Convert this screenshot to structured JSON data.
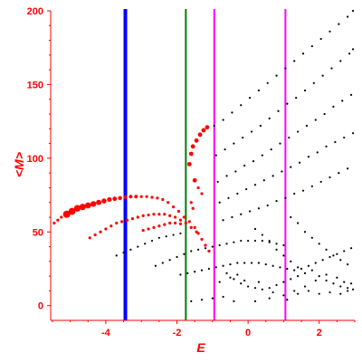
{
  "chart_data": {
    "type": "scatter",
    "xlabel": "E",
    "ylabel": "<M>",
    "xlim": [
      -5.55,
      3.0
    ],
    "ylim": [
      -10,
      200
    ],
    "x_ticks": [
      {
        "value": -4,
        "label": "-4"
      },
      {
        "value": -2,
        "label": "-2"
      },
      {
        "value": 0,
        "label": "0"
      },
      {
        "value": 2,
        "label": "2"
      }
    ],
    "y_ticks": [
      {
        "value": 0,
        "label": "0"
      },
      {
        "value": 50,
        "label": "50"
      },
      {
        "value": 100,
        "label": "100"
      },
      {
        "value": 150,
        "label": "150"
      },
      {
        "value": 200,
        "label": "200"
      }
    ],
    "vertical_lines": [
      {
        "x": -3.45,
        "color": "#0000ff"
      },
      {
        "x": -1.75,
        "color": "#008000"
      },
      {
        "x": -0.95,
        "color": "#ff00ff"
      },
      {
        "x": 1.05,
        "color": "#ff00ff"
      }
    ],
    "colors": {
      "axis": "#ff0000",
      "red_points": "#ff0000",
      "black_points": "#000000"
    },
    "series": [
      {
        "color": "#ff0000",
        "points": [
          [
            -5.45,
            56
          ],
          [
            -5.35,
            58
          ],
          [
            -5.25,
            60
          ],
          [
            -5.1,
            62
          ],
          [
            -4.95,
            64
          ],
          [
            -4.8,
            66
          ],
          [
            -4.65,
            67
          ],
          [
            -4.5,
            68
          ],
          [
            -4.35,
            69
          ],
          [
            -4.2,
            70
          ],
          [
            -4.05,
            71
          ],
          [
            -3.9,
            72
          ],
          [
            -3.75,
            72.5
          ],
          [
            -3.6,
            73
          ],
          [
            -3.45,
            73.5
          ],
          [
            -3.3,
            74
          ],
          [
            -3.15,
            74
          ],
          [
            -3.0,
            74
          ],
          [
            -2.85,
            74
          ],
          [
            -2.7,
            73.5
          ],
          [
            -2.55,
            73
          ],
          [
            -2.4,
            72
          ],
          [
            -2.25,
            70
          ],
          [
            -2.1,
            67
          ],
          [
            -1.95,
            64
          ],
          [
            -1.8,
            60
          ],
          [
            -1.65,
            57
          ],
          [
            -1.5,
            53
          ],
          [
            -1.4,
            49
          ],
          [
            -1.3,
            45
          ],
          [
            -1.2,
            41
          ],
          [
            -1.1,
            37
          ],
          [
            -4.45,
            46
          ],
          [
            -4.3,
            48
          ],
          [
            -4.15,
            50
          ],
          [
            -4.0,
            52
          ],
          [
            -3.85,
            54
          ],
          [
            -3.7,
            56
          ],
          [
            -3.55,
            57
          ],
          [
            -3.4,
            58
          ],
          [
            -3.25,
            59
          ],
          [
            -3.1,
            60
          ],
          [
            -2.95,
            61
          ],
          [
            -2.8,
            61.5
          ],
          [
            -2.65,
            62
          ],
          [
            -2.5,
            62
          ],
          [
            -2.35,
            62
          ],
          [
            -2.2,
            61
          ],
          [
            -2.05,
            60
          ],
          [
            -1.9,
            58
          ],
          [
            -1.75,
            56
          ],
          [
            -1.6,
            53
          ],
          [
            -1.45,
            50
          ],
          [
            -2.95,
            51
          ],
          [
            -2.8,
            52
          ],
          [
            -2.65,
            53
          ],
          [
            -2.5,
            54
          ],
          [
            -2.35,
            55
          ],
          [
            -2.2,
            56
          ],
          [
            -2.05,
            56
          ],
          [
            -1.9,
            55.5
          ],
          [
            -1.65,
            96
          ],
          [
            -1.6,
            103
          ],
          [
            -1.55,
            108
          ],
          [
            -1.45,
            112
          ],
          [
            -1.35,
            116
          ],
          [
            -1.25,
            119
          ],
          [
            -1.15,
            121
          ],
          [
            -1.5,
            85
          ],
          [
            -1.4,
            80
          ],
          [
            -1.3,
            76
          ],
          [
            -1.6,
            70
          ],
          [
            -1.55,
            66
          ]
        ]
      },
      {
        "color": "#000000",
        "points": [
          [
            -0.95,
            122
          ],
          [
            -0.7,
            126
          ],
          [
            -0.45,
            131
          ],
          [
            -0.2,
            136
          ],
          [
            0.05,
            141
          ],
          [
            0.3,
            146
          ],
          [
            0.55,
            151
          ],
          [
            0.8,
            156
          ],
          [
            1.05,
            161
          ],
          [
            1.3,
            166
          ],
          [
            1.55,
            171
          ],
          [
            1.8,
            176
          ],
          [
            2.05,
            181
          ],
          [
            2.3,
            186
          ],
          [
            2.55,
            191
          ],
          [
            2.8,
            196
          ],
          [
            2.95,
            200
          ],
          [
            -0.9,
            102
          ],
          [
            -0.65,
            106
          ],
          [
            -0.4,
            110
          ],
          [
            -0.15,
            114
          ],
          [
            0.1,
            118
          ],
          [
            0.35,
            122
          ],
          [
            0.6,
            127
          ],
          [
            0.85,
            132
          ],
          [
            1.1,
            137
          ],
          [
            1.35,
            141
          ],
          [
            1.6,
            146
          ],
          [
            1.85,
            151
          ],
          [
            2.1,
            156
          ],
          [
            2.35,
            161
          ],
          [
            2.6,
            166
          ],
          [
            2.85,
            171
          ],
          [
            2.95,
            174
          ],
          [
            -0.85,
            84
          ],
          [
            -0.6,
            88
          ],
          [
            -0.35,
            91
          ],
          [
            -0.1,
            95
          ],
          [
            0.15,
            98
          ],
          [
            0.4,
            102
          ],
          [
            0.65,
            106
          ],
          [
            0.9,
            110
          ],
          [
            1.15,
            114
          ],
          [
            1.4,
            118
          ],
          [
            1.65,
            122
          ],
          [
            1.9,
            126
          ],
          [
            2.15,
            130
          ],
          [
            2.4,
            135
          ],
          [
            2.65,
            139
          ],
          [
            2.9,
            143
          ],
          [
            -0.8,
            70
          ],
          [
            -0.55,
            73
          ],
          [
            -0.3,
            76
          ],
          [
            -0.05,
            79
          ],
          [
            0.2,
            82
          ],
          [
            0.45,
            85
          ],
          [
            0.7,
            88
          ],
          [
            0.95,
            91
          ],
          [
            1.2,
            94
          ],
          [
            1.45,
            97
          ],
          [
            1.7,
            101
          ],
          [
            1.95,
            104
          ],
          [
            2.2,
            108
          ],
          [
            2.45,
            111
          ],
          [
            2.7,
            114
          ],
          [
            2.95,
            117
          ],
          [
            -0.7,
            58
          ],
          [
            -0.45,
            60
          ],
          [
            -0.2,
            62
          ],
          [
            0.05,
            64
          ],
          [
            0.3,
            66
          ],
          [
            0.55,
            68
          ],
          [
            0.8,
            71
          ],
          [
            1.05,
            73
          ],
          [
            1.3,
            76
          ],
          [
            1.55,
            78
          ],
          [
            1.8,
            81
          ],
          [
            2.05,
            84
          ],
          [
            2.3,
            87
          ],
          [
            2.55,
            90
          ],
          [
            2.8,
            93
          ],
          [
            -3.7,
            34
          ],
          [
            -3.5,
            36
          ],
          [
            -3.3,
            38
          ],
          [
            -3.1,
            40
          ],
          [
            -2.9,
            42
          ],
          [
            -2.7,
            44
          ],
          [
            -2.5,
            46
          ],
          [
            -2.3,
            47
          ],
          [
            -2.1,
            48
          ],
          [
            -1.9,
            49
          ],
          [
            -2.6,
            27
          ],
          [
            -2.4,
            29
          ],
          [
            -2.2,
            31
          ],
          [
            -2.0,
            33
          ],
          [
            -1.8,
            35
          ],
          [
            -1.6,
            37
          ],
          [
            -1.4,
            38
          ],
          [
            -1.2,
            39
          ],
          [
            -1.0,
            40
          ],
          [
            -0.8,
            41
          ],
          [
            -0.6,
            42
          ],
          [
            -0.4,
            43
          ],
          [
            -0.2,
            44
          ],
          [
            0.0,
            44
          ],
          [
            0.2,
            44
          ],
          [
            0.4,
            44
          ],
          [
            0.6,
            43
          ],
          [
            0.8,
            42
          ],
          [
            1.0,
            41
          ],
          [
            -1.9,
            21
          ],
          [
            -1.7,
            22
          ],
          [
            -1.5,
            23
          ],
          [
            -1.3,
            24
          ],
          [
            -1.1,
            25
          ],
          [
            -0.9,
            26
          ],
          [
            -0.7,
            27
          ],
          [
            -0.5,
            28
          ],
          [
            -0.3,
            29
          ],
          [
            -0.1,
            29
          ],
          [
            0.1,
            29
          ],
          [
            0.3,
            29
          ],
          [
            0.5,
            28
          ],
          [
            0.7,
            27
          ],
          [
            0.9,
            26
          ],
          [
            1.1,
            25
          ],
          [
            1.3,
            24
          ],
          [
            1.5,
            25
          ],
          [
            1.7,
            27
          ],
          [
            1.9,
            29
          ],
          [
            2.1,
            31
          ],
          [
            2.3,
            33
          ],
          [
            2.5,
            35
          ],
          [
            2.7,
            37
          ],
          [
            2.9,
            39
          ],
          [
            -0.6,
            22
          ],
          [
            -0.4,
            18
          ],
          [
            -0.2,
            15
          ],
          [
            0.0,
            13
          ],
          [
            0.2,
            12
          ],
          [
            0.4,
            11
          ],
          [
            0.6,
            12
          ],
          [
            0.8,
            14
          ],
          [
            1.0,
            16
          ],
          [
            1.2,
            18
          ],
          [
            1.4,
            20
          ],
          [
            1.6,
            22
          ],
          [
            1.8,
            24
          ],
          [
            2.0,
            20
          ],
          [
            2.2,
            17
          ],
          [
            2.4,
            15
          ],
          [
            2.6,
            13
          ],
          [
            2.8,
            12
          ],
          [
            2.95,
            11
          ],
          [
            -0.8,
            16
          ],
          [
            -0.5,
            19
          ],
          [
            -0.3,
            21
          ],
          [
            -0.1,
            17
          ],
          [
            0.3,
            16
          ],
          [
            0.7,
            9
          ],
          [
            1.0,
            7
          ],
          [
            1.3,
            10
          ],
          [
            1.6,
            13
          ],
          [
            1.9,
            17
          ],
          [
            2.2,
            21
          ],
          [
            2.5,
            19
          ],
          [
            2.7,
            16
          ],
          [
            2.9,
            15
          ],
          [
            -1.6,
            3
          ],
          [
            -1.3,
            4
          ],
          [
            -1.0,
            5
          ],
          [
            -0.7,
            6
          ],
          [
            -0.4,
            3
          ],
          [
            0.2,
            3
          ],
          [
            0.6,
            5
          ],
          [
            1.1,
            4
          ],
          [
            1.4,
            8
          ],
          [
            1.7,
            10
          ],
          [
            2.0,
            8
          ],
          [
            2.3,
            9
          ],
          [
            2.6,
            8
          ],
          [
            2.8,
            10
          ],
          [
            1.2,
            60
          ],
          [
            1.4,
            56
          ],
          [
            1.6,
            50
          ],
          [
            1.8,
            46
          ],
          [
            2.0,
            42
          ],
          [
            2.2,
            38
          ],
          [
            2.4,
            34
          ],
          [
            2.6,
            31
          ],
          [
            2.8,
            28
          ],
          [
            0.2,
            52
          ],
          [
            0.4,
            48
          ],
          [
            0.6,
            44
          ],
          [
            0.8,
            38
          ],
          [
            1.0,
            34
          ],
          [
            1.2,
            30
          ],
          [
            1.4,
            26
          ]
        ]
      }
    ]
  }
}
